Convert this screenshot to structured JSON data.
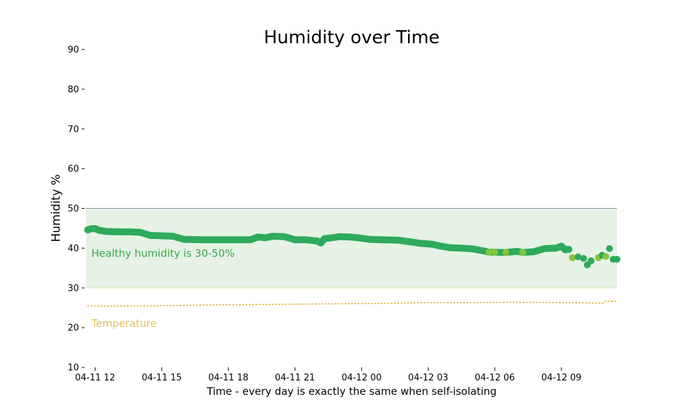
{
  "chart_data": {
    "type": "scatter",
    "title": "Humidity over Time",
    "xlabel": "Time - every day is exactly the same when self-isolating",
    "ylabel": "Humidity %",
    "ylim": [
      10,
      90
    ],
    "xlim": [
      "04-11 11:35",
      "04-12 11:30"
    ],
    "y_ticks": [
      10,
      20,
      30,
      40,
      50,
      60,
      70,
      80,
      90
    ],
    "x_ticks": [
      {
        "t": "04-11 12:00",
        "label": "04-11 12"
      },
      {
        "t": "04-11 15:00",
        "label": "04-11 15"
      },
      {
        "t": "04-11 18:00",
        "label": "04-11 18"
      },
      {
        "t": "04-11 21:00",
        "label": "04-11 21"
      },
      {
        "t": "04-12 00:00",
        "label": "04-12 00"
      },
      {
        "t": "04-12 03:00",
        "label": "04-12 03"
      },
      {
        "t": "04-12 06:00",
        "label": "04-12 06"
      },
      {
        "t": "04-12 09:00",
        "label": "04-12 09"
      }
    ],
    "band": {
      "y0": 30,
      "y1": 50,
      "label": "Healthy humidity is 30-50%",
      "color": "#e6f2e6",
      "label_color": "#3aa648"
    },
    "grid": false,
    "series": [
      {
        "kind": "scatter",
        "color": "#2eaa5c",
        "alt_color": "#86c53c",
        "points": [
          {
            "t": "04-11 11:40",
            "y": 44.6
          },
          {
            "t": "04-11 11:50",
            "y": 44.9
          },
          {
            "t": "04-11 12:00",
            "y": 44.9
          },
          {
            "t": "04-11 12:10",
            "y": 44.5
          },
          {
            "t": "04-11 12:30",
            "y": 44.2
          },
          {
            "t": "04-11 13:00",
            "y": 44.1
          },
          {
            "t": "04-11 13:30",
            "y": 44.1
          },
          {
            "t": "04-11 14:00",
            "y": 44.0
          },
          {
            "t": "04-11 14:15",
            "y": 43.6
          },
          {
            "t": "04-11 14:30",
            "y": 43.2
          },
          {
            "t": "04-11 15:00",
            "y": 43.1
          },
          {
            "t": "04-11 15:30",
            "y": 43.0
          },
          {
            "t": "04-11 15:45",
            "y": 42.6
          },
          {
            "t": "04-11 16:00",
            "y": 42.2
          },
          {
            "t": "04-11 17:00",
            "y": 42.1
          },
          {
            "t": "04-11 18:00",
            "y": 42.1
          },
          {
            "t": "04-11 19:00",
            "y": 42.1
          },
          {
            "t": "04-11 19:20",
            "y": 42.8
          },
          {
            "t": "04-11 19:40",
            "y": 42.6
          },
          {
            "t": "04-11 20:00",
            "y": 43.0
          },
          {
            "t": "04-11 20:30",
            "y": 42.9
          },
          {
            "t": "04-11 20:50",
            "y": 42.4
          },
          {
            "t": "04-11 21:00",
            "y": 42.1
          },
          {
            "t": "04-11 21:30",
            "y": 42.1
          },
          {
            "t": "04-11 22:00",
            "y": 41.8
          },
          {
            "t": "04-11 22:10",
            "y": 41.3
          },
          {
            "t": "04-11 22:20",
            "y": 42.4
          },
          {
            "t": "04-11 22:40",
            "y": 42.6
          },
          {
            "t": "04-11 23:00",
            "y": 42.9
          },
          {
            "t": "04-11 23:30",
            "y": 42.8
          },
          {
            "t": "04-12 00:00",
            "y": 42.5
          },
          {
            "t": "04-12 00:20",
            "y": 42.2
          },
          {
            "t": "04-12 01:00",
            "y": 42.1
          },
          {
            "t": "04-12 01:40",
            "y": 42.0
          },
          {
            "t": "04-12 02:10",
            "y": 41.6
          },
          {
            "t": "04-12 02:40",
            "y": 41.2
          },
          {
            "t": "04-12 03:10",
            "y": 41.0
          },
          {
            "t": "04-12 03:40",
            "y": 40.4
          },
          {
            "t": "04-12 04:00",
            "y": 40.1
          },
          {
            "t": "04-12 04:30",
            "y": 40.0
          },
          {
            "t": "04-12 05:00",
            "y": 39.8
          },
          {
            "t": "04-12 05:30",
            "y": 39.3
          },
          {
            "t": "04-12 05:45",
            "y": 39.0,
            "alt": true
          },
          {
            "t": "04-12 06:00",
            "y": 39.0,
            "alt": true
          },
          {
            "t": "04-12 06:30",
            "y": 38.9,
            "alt": true
          },
          {
            "t": "04-12 07:00",
            "y": 39.2
          },
          {
            "t": "04-12 07:15",
            "y": 38.9,
            "alt": true
          },
          {
            "t": "04-12 07:45",
            "y": 39.1
          },
          {
            "t": "04-12 08:15",
            "y": 39.9
          },
          {
            "t": "04-12 08:45",
            "y": 40.0
          },
          {
            "t": "04-12 09:00",
            "y": 40.5
          },
          {
            "t": "04-12 09:10",
            "y": 39.6
          },
          {
            "t": "04-12 09:20",
            "y": 39.7
          },
          {
            "t": "04-12 09:30",
            "y": 37.6,
            "alt": true
          },
          {
            "t": "04-12 09:45",
            "y": 37.8
          },
          {
            "t": "04-12 10:00",
            "y": 37.4
          },
          {
            "t": "04-12 10:10",
            "y": 35.8
          },
          {
            "t": "04-12 10:20",
            "y": 36.8
          },
          {
            "t": "04-12 10:40",
            "y": 37.6,
            "alt": true
          },
          {
            "t": "04-12 10:50",
            "y": 38.2
          },
          {
            "t": "04-12 11:00",
            "y": 37.9,
            "alt": true
          },
          {
            "t": "04-12 11:10",
            "y": 39.9
          },
          {
            "t": "04-12 11:20",
            "y": 37.2
          },
          {
            "t": "04-12 11:30",
            "y": 37.2
          }
        ]
      },
      {
        "kind": "dotted-line",
        "label": "Temperature",
        "color": "#dcb23a",
        "label_color": "#e2c064",
        "points": [
          {
            "t": "04-11 11:40",
            "y": 25.4
          },
          {
            "t": "04-11 13:00",
            "y": 25.4
          },
          {
            "t": "04-11 15:00",
            "y": 25.5
          },
          {
            "t": "04-11 17:00",
            "y": 25.7
          },
          {
            "t": "04-11 19:00",
            "y": 25.8
          },
          {
            "t": "04-11 21:00",
            "y": 25.9
          },
          {
            "t": "04-11 23:00",
            "y": 26.0
          },
          {
            "t": "04-12 01:00",
            "y": 26.1
          },
          {
            "t": "04-12 03:00",
            "y": 26.3
          },
          {
            "t": "04-12 05:00",
            "y": 26.3
          },
          {
            "t": "04-12 07:00",
            "y": 26.4
          },
          {
            "t": "04-12 09:00",
            "y": 26.3
          },
          {
            "t": "04-12 10:30",
            "y": 26.2
          },
          {
            "t": "04-12 10:50",
            "y": 26.1
          },
          {
            "t": "04-12 11:00",
            "y": 26.7
          },
          {
            "t": "04-12 11:30",
            "y": 26.6
          }
        ]
      }
    ]
  }
}
